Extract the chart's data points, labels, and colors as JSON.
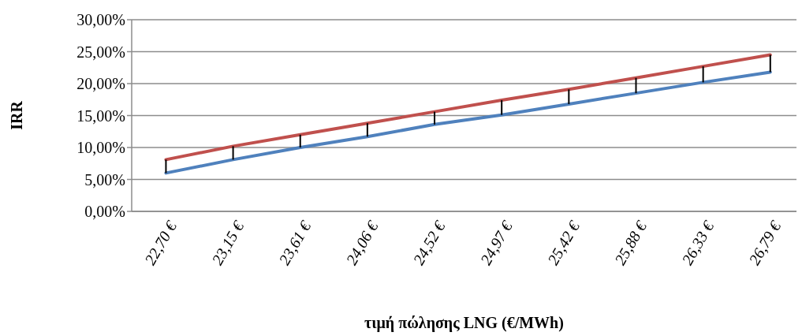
{
  "chart_data": {
    "type": "line",
    "xlabel": "τιμή πώλησης LNG (€/MWh)",
    "ylabel": "IRR",
    "categories": [
      "22,70 €",
      "23,15 €",
      "23,61 €",
      "24,06 €",
      "24,52 €",
      "24,97 €",
      "25,42 €",
      "25,88 €",
      "26,33 €",
      "26,79 €"
    ],
    "series": [
      {
        "color": "#4f81bd",
        "values": [
          6.0,
          8.1,
          10.0,
          11.7,
          13.6,
          15.1,
          16.8,
          18.5,
          20.2,
          21.8
        ]
      },
      {
        "color": "#c0504d",
        "values": [
          8.1,
          10.2,
          12.0,
          13.8,
          15.6,
          17.4,
          19.1,
          20.9,
          22.7,
          24.5
        ]
      }
    ],
    "ylim": [
      0,
      30
    ],
    "yticks": [
      {
        "value": 0,
        "label": "0,00%"
      },
      {
        "value": 5,
        "label": "5,00%"
      },
      {
        "value": 10,
        "label": "10,00%"
      },
      {
        "value": 15,
        "label": "15,00%"
      },
      {
        "value": 20,
        "label": "20,00%"
      },
      {
        "value": 25,
        "label": "25,00%"
      },
      {
        "value": 30,
        "label": "30,00%"
      }
    ],
    "grid": "y",
    "marker": "none",
    "line_style": "solid"
  }
}
